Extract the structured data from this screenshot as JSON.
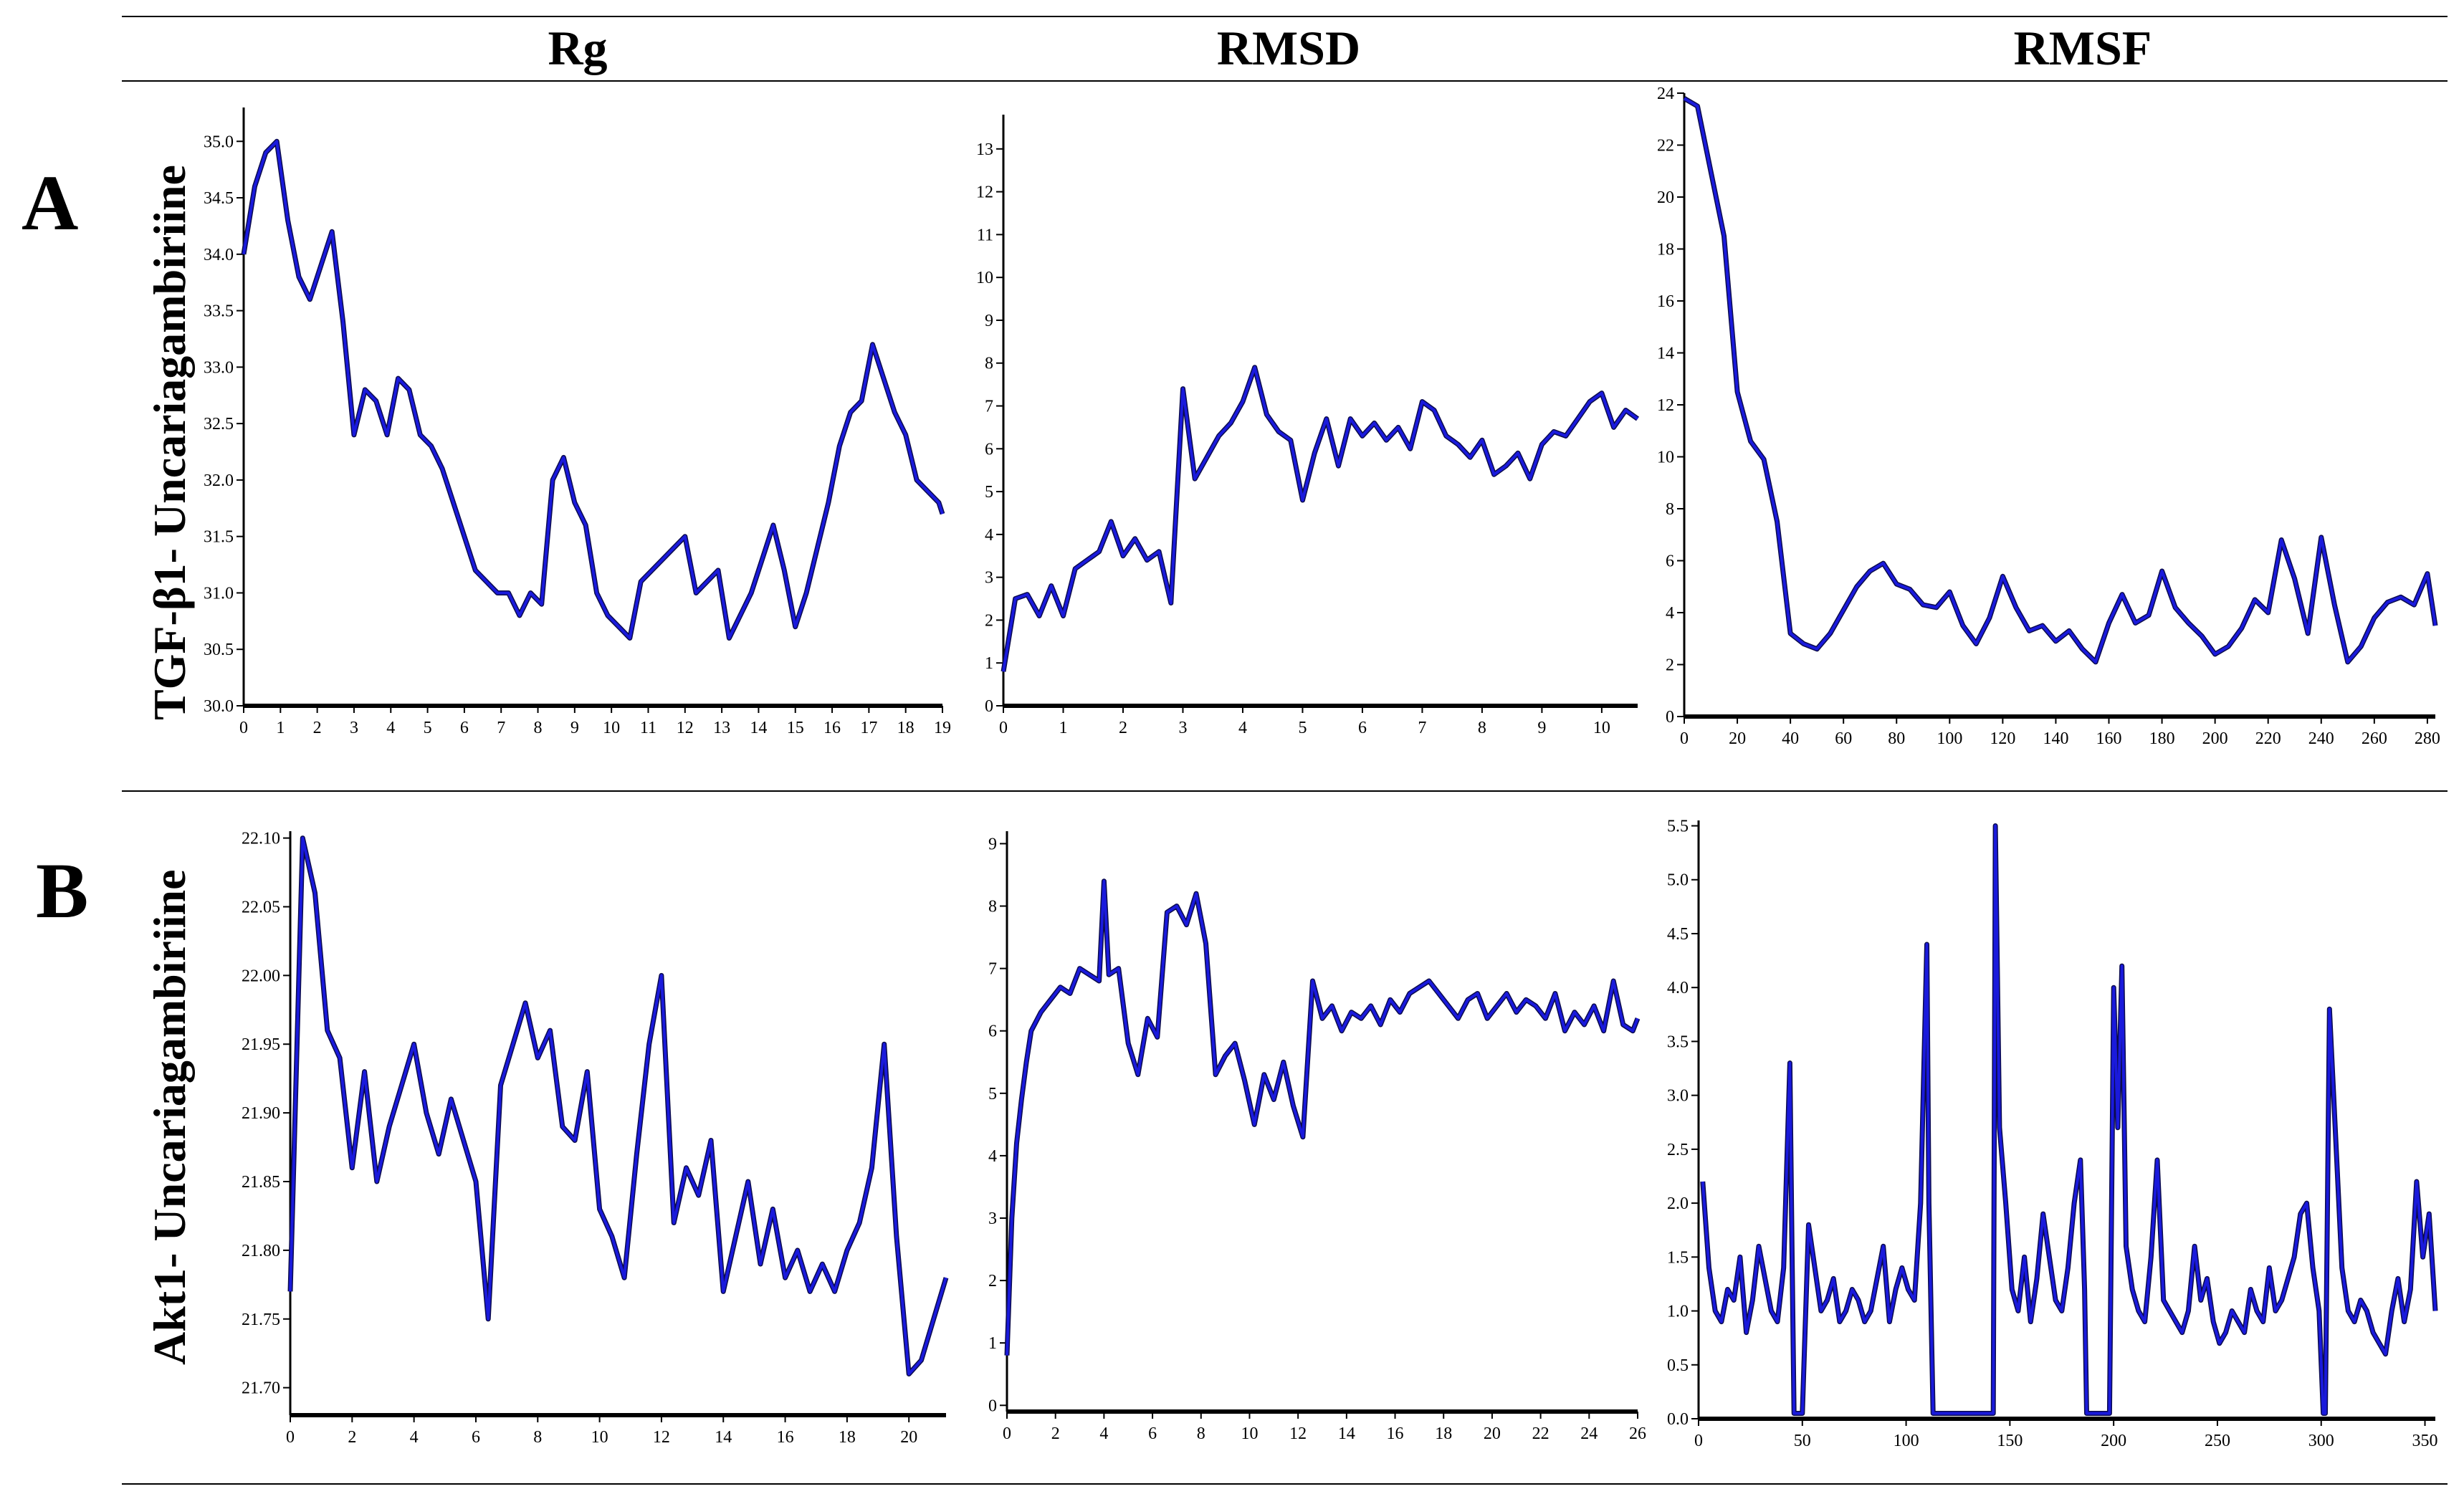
{
  "column_titles": [
    "Rg",
    "RMSD",
    "RMSF"
  ],
  "rows": [
    {
      "letter": "A",
      "label": "TGF-β1- Uncariagambiriine"
    },
    {
      "letter": "B",
      "label": "Akt1- Uncariagambiriine"
    }
  ],
  "colors": {
    "trace": "#1a1adc",
    "trace_dark": "#0b0b4d",
    "axis": "#000000"
  },
  "chart_data": [
    {
      "id": "A-Rg",
      "type": "line",
      "xlim": [
        0,
        19
      ],
      "ylim": [
        30,
        35.3
      ],
      "xticks": [
        0,
        1,
        2,
        3,
        4,
        5,
        6,
        7,
        8,
        9,
        10,
        11,
        12,
        13,
        14,
        15,
        16,
        17,
        18,
        19
      ],
      "yticks": [
        30.0,
        30.5,
        31.0,
        31.5,
        32.0,
        32.5,
        33.0,
        33.5,
        34.0,
        34.5,
        35.0
      ],
      "ytick_decimals": 1,
      "series": [
        {
          "x": [
            0,
            0.3,
            0.6,
            0.9,
            1.2,
            1.5,
            1.8,
            2.1,
            2.4,
            2.7,
            3.0,
            3.3,
            3.6,
            3.9,
            4.2,
            4.5,
            4.8,
            5.1,
            5.4,
            5.7,
            6.0,
            6.3,
            6.6,
            6.9,
            7.2,
            7.5,
            7.8,
            8.1,
            8.4,
            8.7,
            9.0,
            9.3,
            9.6,
            9.9,
            10.2,
            10.5,
            10.8,
            11.1,
            11.4,
            11.7,
            12.0,
            12.3,
            12.6,
            12.9,
            13.2,
            13.5,
            13.8,
            14.1,
            14.4,
            14.7,
            15.0,
            15.3,
            15.6,
            15.9,
            16.2,
            16.5,
            16.8,
            17.1,
            17.4,
            17.7,
            18.0,
            18.3,
            18.6,
            18.9,
            19.0
          ],
          "y": [
            34.0,
            34.6,
            34.9,
            35.0,
            34.3,
            33.8,
            33.6,
            33.9,
            34.2,
            33.4,
            32.4,
            32.8,
            32.7,
            32.4,
            32.9,
            32.8,
            32.4,
            32.3,
            32.1,
            31.8,
            31.5,
            31.2,
            31.1,
            31.0,
            31.0,
            30.8,
            31.0,
            30.9,
            32.0,
            32.2,
            31.8,
            31.6,
            31.0,
            30.8,
            30.7,
            30.6,
            31.1,
            31.2,
            31.3,
            31.4,
            31.5,
            31.0,
            31.1,
            31.2,
            30.6,
            30.8,
            31.0,
            31.3,
            31.6,
            31.2,
            30.7,
            31.0,
            31.4,
            31.8,
            32.3,
            32.6,
            32.7,
            33.2,
            32.9,
            32.6,
            32.4,
            32.0,
            31.9,
            31.8,
            31.7
          ]
        }
      ]
    },
    {
      "id": "A-RMSD",
      "type": "line",
      "xlim": [
        0,
        10.6
      ],
      "ylim": [
        0,
        13.8
      ],
      "xticks": [
        0,
        1,
        2,
        3,
        4,
        5,
        6,
        7,
        8,
        9,
        10
      ],
      "yticks": [
        0,
        1,
        2,
        3,
        4,
        5,
        6,
        7,
        8,
        9,
        10,
        11,
        12,
        13
      ],
      "ytick_decimals": 0,
      "series": [
        {
          "x": [
            0,
            0.2,
            0.4,
            0.6,
            0.8,
            1.0,
            1.2,
            1.4,
            1.6,
            1.8,
            2.0,
            2.2,
            2.4,
            2.6,
            2.8,
            3.0,
            3.2,
            3.4,
            3.6,
            3.8,
            4.0,
            4.2,
            4.4,
            4.6,
            4.8,
            5.0,
            5.2,
            5.4,
            5.6,
            5.8,
            6.0,
            6.2,
            6.4,
            6.6,
            6.8,
            7.0,
            7.2,
            7.4,
            7.6,
            7.8,
            8.0,
            8.2,
            8.4,
            8.6,
            8.8,
            9.0,
            9.2,
            9.4,
            9.6,
            9.8,
            10.0,
            10.2,
            10.4,
            10.6
          ],
          "y": [
            0.8,
            2.5,
            2.6,
            2.1,
            2.8,
            2.1,
            3.2,
            3.4,
            3.6,
            4.3,
            3.5,
            3.9,
            3.4,
            3.6,
            2.4,
            7.4,
            5.3,
            5.8,
            6.3,
            6.6,
            7.1,
            7.9,
            6.8,
            6.4,
            6.2,
            4.8,
            5.9,
            6.7,
            5.6,
            6.7,
            6.3,
            6.6,
            6.2,
            6.5,
            6.0,
            7.1,
            6.9,
            6.3,
            6.1,
            5.8,
            6.2,
            5.4,
            5.6,
            5.9,
            5.3,
            6.1,
            6.4,
            6.3,
            6.7,
            7.1,
            7.3,
            6.5,
            6.9,
            6.7
          ]
        }
      ]
    },
    {
      "id": "A-RMSF",
      "type": "line",
      "xlim": [
        0,
        283
      ],
      "ylim": [
        0,
        24
      ],
      "xticks": [
        0,
        20,
        40,
        60,
        80,
        100,
        120,
        140,
        160,
        180,
        200,
        220,
        240,
        260,
        280
      ],
      "yticks": [
        0,
        2,
        4,
        6,
        8,
        10,
        12,
        14,
        16,
        18,
        20,
        22,
        24
      ],
      "ytick_decimals": 0,
      "series": [
        {
          "x": [
            0,
            5,
            10,
            15,
            20,
            25,
            30,
            35,
            40,
            45,
            50,
            55,
            60,
            65,
            70,
            75,
            80,
            85,
            90,
            95,
            100,
            105,
            110,
            115,
            120,
            125,
            130,
            135,
            140,
            145,
            150,
            155,
            160,
            165,
            170,
            175,
            180,
            185,
            190,
            195,
            200,
            205,
            210,
            215,
            220,
            225,
            230,
            235,
            240,
            245,
            250,
            255,
            260,
            265,
            270,
            275,
            280,
            283
          ],
          "y": [
            23.8,
            23.5,
            21.0,
            18.5,
            12.5,
            10.6,
            9.9,
            7.5,
            3.2,
            2.8,
            2.6,
            3.2,
            4.1,
            5.0,
            5.6,
            5.9,
            5.1,
            4.9,
            4.3,
            4.2,
            4.8,
            3.5,
            2.8,
            3.8,
            5.4,
            4.2,
            3.3,
            3.5,
            2.9,
            3.3,
            2.6,
            2.1,
            3.6,
            4.7,
            3.6,
            3.9,
            5.6,
            4.2,
            3.6,
            3.1,
            2.4,
            2.7,
            3.4,
            4.5,
            4.0,
            6.8,
            5.3,
            3.2,
            6.9,
            4.3,
            2.1,
            2.7,
            3.8,
            4.4,
            4.6,
            4.3,
            5.5,
            3.5
          ]
        }
      ]
    },
    {
      "id": "B-Rg",
      "type": "line",
      "xlim": [
        0,
        21.2
      ],
      "ylim": [
        21.68,
        22.105
      ],
      "xticks": [
        0,
        2,
        4,
        6,
        8,
        10,
        12,
        14,
        16,
        18,
        20
      ],
      "yticks": [
        21.7,
        21.75,
        21.8,
        21.85,
        21.9,
        21.95,
        22.0,
        22.05,
        22.1
      ],
      "ytick_decimals": 2,
      "series": [
        {
          "x": [
            0,
            0.4,
            0.8,
            1.2,
            1.6,
            2.0,
            2.4,
            2.8,
            3.2,
            3.6,
            4.0,
            4.4,
            4.8,
            5.2,
            5.6,
            6.0,
            6.4,
            6.8,
            7.2,
            7.6,
            8.0,
            8.4,
            8.8,
            9.2,
            9.6,
            10.0,
            10.4,
            10.8,
            11.2,
            11.6,
            12.0,
            12.4,
            12.8,
            13.2,
            13.6,
            14.0,
            14.4,
            14.8,
            15.2,
            15.6,
            16.0,
            16.4,
            16.8,
            17.2,
            17.6,
            18.0,
            18.4,
            18.8,
            19.2,
            19.6,
            20.0,
            20.4,
            20.8,
            21.2
          ],
          "y": [
            21.77,
            22.1,
            22.06,
            21.96,
            21.94,
            21.86,
            21.93,
            21.85,
            21.89,
            21.92,
            21.95,
            21.9,
            21.87,
            21.91,
            21.88,
            21.85,
            21.75,
            21.92,
            21.95,
            21.98,
            21.94,
            21.96,
            21.89,
            21.88,
            21.93,
            21.83,
            21.81,
            21.78,
            21.87,
            21.95,
            22.0,
            21.82,
            21.86,
            21.84,
            21.88,
            21.77,
            21.81,
            21.85,
            21.79,
            21.83,
            21.78,
            21.8,
            21.77,
            21.79,
            21.77,
            21.8,
            21.82,
            21.86,
            21.95,
            21.81,
            21.71,
            21.72,
            21.75,
            21.78
          ]
        }
      ]
    },
    {
      "id": "B-RMSD",
      "type": "line",
      "xlim": [
        0,
        26
      ],
      "ylim": [
        -0.1,
        9.2
      ],
      "xticks": [
        0,
        2,
        4,
        6,
        8,
        10,
        12,
        14,
        16,
        18,
        20,
        22,
        24,
        26
      ],
      "yticks": [
        0,
        1,
        2,
        3,
        4,
        5,
        6,
        7,
        8,
        9
      ],
      "ytick_decimals": 0,
      "series": [
        {
          "x": [
            0,
            0.2,
            0.4,
            0.6,
            0.8,
            1.0,
            1.4,
            1.8,
            2.2,
            2.6,
            3.0,
            3.4,
            3.8,
            4.0,
            4.2,
            4.6,
            5.0,
            5.4,
            5.8,
            6.2,
            6.6,
            7.0,
            7.4,
            7.8,
            8.2,
            8.6,
            9.0,
            9.4,
            9.8,
            10.2,
            10.6,
            11.0,
            11.4,
            11.8,
            12.2,
            12.6,
            13.0,
            13.4,
            13.8,
            14.2,
            14.6,
            15.0,
            15.4,
            15.8,
            16.2,
            16.6,
            17.0,
            17.4,
            17.8,
            18.2,
            18.6,
            19.0,
            19.4,
            19.8,
            20.2,
            20.6,
            21.0,
            21.4,
            21.8,
            22.2,
            22.6,
            23.0,
            23.4,
            23.8,
            24.2,
            24.6,
            25.0,
            25.4,
            25.8,
            26.0
          ],
          "y": [
            0.8,
            3.0,
            4.2,
            4.9,
            5.5,
            6.0,
            6.3,
            6.5,
            6.7,
            6.6,
            7.0,
            6.9,
            6.8,
            8.4,
            6.9,
            7.0,
            5.8,
            5.3,
            6.2,
            5.9,
            7.9,
            8.0,
            7.7,
            8.2,
            7.4,
            5.3,
            5.6,
            5.8,
            5.2,
            4.5,
            5.3,
            4.9,
            5.5,
            4.8,
            4.3,
            6.8,
            6.2,
            6.4,
            6.0,
            6.3,
            6.2,
            6.4,
            6.1,
            6.5,
            6.3,
            6.6,
            6.7,
            6.8,
            6.6,
            6.4,
            6.2,
            6.5,
            6.6,
            6.2,
            6.4,
            6.6,
            6.3,
            6.5,
            6.4,
            6.2,
            6.6,
            6.0,
            6.3,
            6.1,
            6.4,
            6.0,
            6.8,
            6.1,
            6.0,
            6.2
          ]
        }
      ]
    },
    {
      "id": "B-RMSF",
      "type": "line",
      "xlim": [
        0,
        355
      ],
      "ylim": [
        0,
        5.55
      ],
      "xticks": [
        0,
        50,
        100,
        150,
        200,
        250,
        300,
        350
      ],
      "yticks": [
        0.0,
        0.5,
        1.0,
        1.5,
        2.0,
        2.5,
        3.0,
        3.5,
        4.0,
        4.5,
        5.0,
        5.5
      ],
      "ytick_decimals": 1,
      "series": [
        {
          "x": [
            2,
            5,
            8,
            11,
            14,
            17,
            20,
            23,
            26,
            29,
            32,
            35,
            38,
            41,
            44,
            45,
            46,
            48,
            50,
            53,
            56,
            59,
            62,
            65,
            68,
            71,
            74,
            77,
            80,
            83,
            86,
            89,
            92,
            95,
            98,
            101,
            104,
            107,
            110,
            111,
            113,
            140,
            142,
            143,
            145,
            148,
            151,
            154,
            157,
            160,
            163,
            166,
            169,
            172,
            175,
            178,
            181,
            184,
            186,
            187,
            189,
            198,
            199,
            200,
            202,
            204,
            206,
            209,
            212,
            215,
            218,
            221,
            224,
            227,
            230,
            233,
            236,
            239,
            242,
            245,
            248,
            251,
            254,
            257,
            260,
            263,
            266,
            269,
            272,
            275,
            278,
            281,
            284,
            287,
            290,
            293,
            296,
            299,
            301,
            302,
            304,
            308,
            310,
            313,
            316,
            319,
            322,
            325,
            328,
            331,
            334,
            337,
            340,
            343,
            346,
            349,
            352,
            355
          ],
          "y": [
            2.2,
            1.4,
            1.0,
            0.9,
            1.2,
            1.1,
            1.5,
            0.8,
            1.1,
            1.6,
            1.3,
            1.0,
            0.9,
            1.4,
            3.3,
            1.6,
            0.05,
            0.05,
            0.05,
            1.8,
            1.4,
            1.0,
            1.1,
            1.3,
            0.9,
            1.0,
            1.2,
            1.1,
            0.9,
            1.0,
            1.3,
            1.6,
            0.9,
            1.2,
            1.4,
            1.2,
            1.1,
            2.0,
            4.4,
            2.0,
            0.05,
            0.05,
            0.05,
            5.5,
            2.7,
            2.0,
            1.2,
            1.0,
            1.5,
            0.9,
            1.3,
            1.9,
            1.5,
            1.1,
            1.0,
            1.4,
            2.0,
            2.4,
            1.2,
            0.05,
            0.05,
            0.05,
            2.0,
            4.0,
            2.7,
            4.2,
            1.6,
            1.2,
            1.0,
            0.9,
            1.5,
            2.4,
            1.1,
            1.0,
            0.9,
            0.8,
            1.0,
            1.6,
            1.1,
            1.3,
            0.9,
            0.7,
            0.8,
            1.0,
            0.9,
            0.8,
            1.2,
            1.0,
            0.9,
            1.4,
            1.0,
            1.1,
            1.3,
            1.5,
            1.9,
            2.0,
            1.4,
            1.0,
            0.05,
            0.05,
            3.8,
            2.2,
            1.4,
            1.0,
            0.9,
            1.1,
            1.0,
            0.8,
            0.7,
            0.6,
            1.0,
            1.3,
            0.9,
            1.2,
            2.2,
            1.5,
            1.9,
            1.0
          ]
        }
      ]
    }
  ]
}
